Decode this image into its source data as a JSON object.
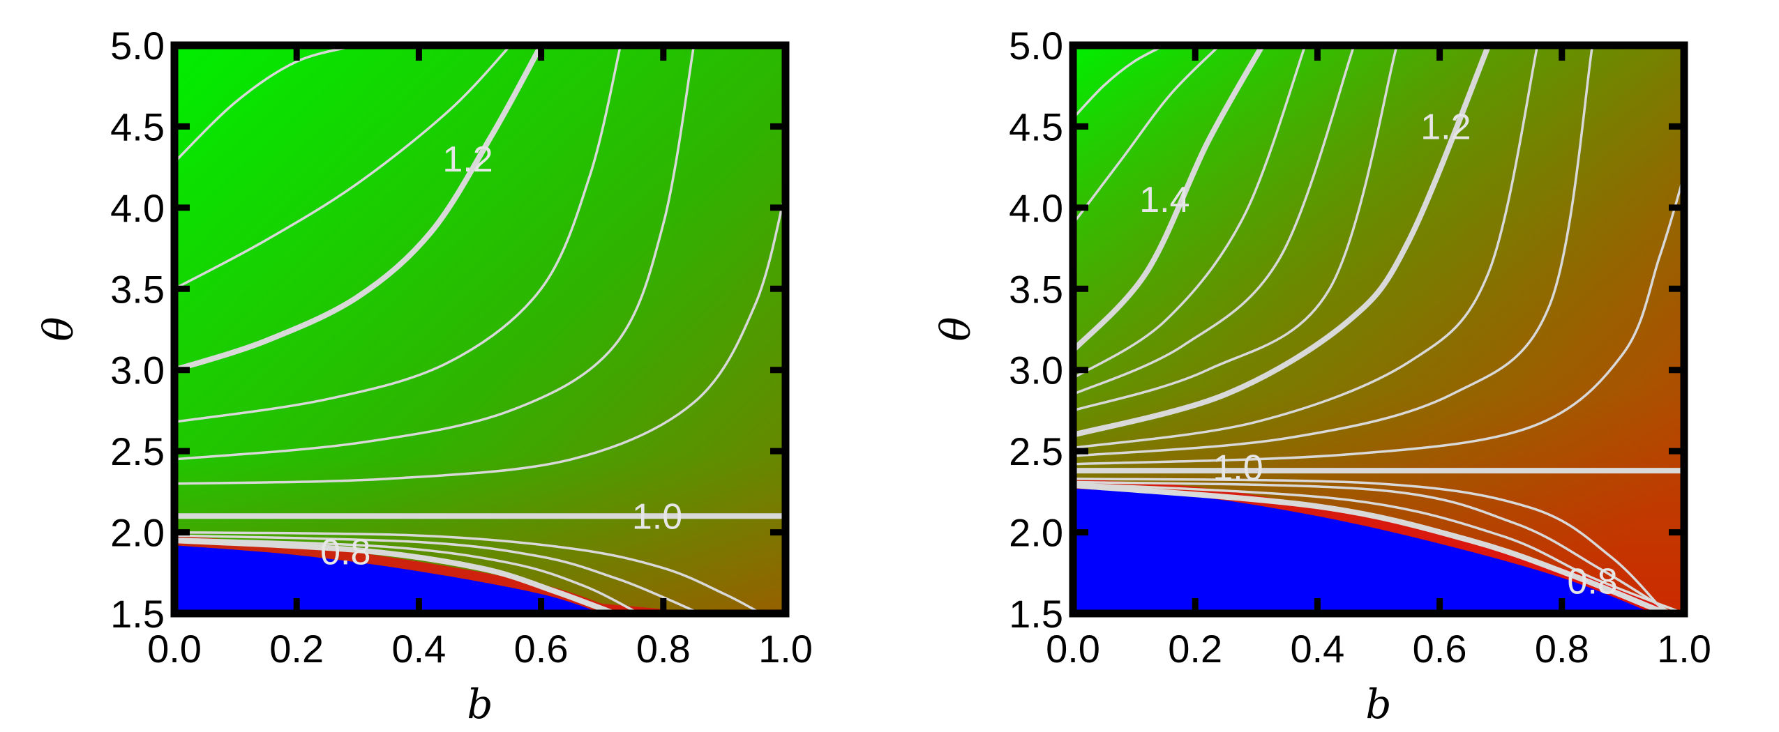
{
  "chart_data": [
    {
      "type": "heatmap",
      "title": "",
      "xlabel": "b",
      "ylabel": "θ",
      "xlim": [
        0.0,
        1.0
      ],
      "ylim": [
        1.5,
        5.0
      ],
      "x_ticks": [
        "0.0",
        "0.2",
        "0.4",
        "0.6",
        "0.8",
        "1.0"
      ],
      "y_ticks": [
        "1.5",
        "2.0",
        "2.5",
        "3.0",
        "3.5",
        "4.0",
        "4.5",
        "5.0"
      ],
      "grid": false,
      "legend": "none",
      "colors": {
        "high": "#00f000",
        "mid": "#7a7a00",
        "low_red": "#e01010",
        "region_below": "#0000ff",
        "contour": "#d9d9d9"
      },
      "blue_region_boundary": {
        "b": [
          0.0,
          0.2,
          0.4,
          0.6,
          0.7
        ],
        "theta": [
          1.92,
          1.86,
          1.76,
          1.62,
          1.5
        ]
      },
      "contour_labels": [
        {
          "text": "1.2",
          "b": 0.48,
          "theta": 4.3
        },
        {
          "text": "1.0",
          "b": 0.79,
          "theta": 2.1
        },
        {
          "text": "0.8",
          "b": 0.28,
          "theta": 1.88
        }
      ],
      "contours": [
        {
          "level": 1.4,
          "major": false,
          "b": [
            0.0,
            0.1,
            0.2,
            0.3
          ],
          "theta": [
            4.28,
            4.65,
            4.9,
            5.0
          ]
        },
        {
          "level": 1.3,
          "major": false,
          "b": [
            0.0,
            0.15,
            0.3,
            0.45,
            0.55
          ],
          "theta": [
            3.5,
            3.8,
            4.15,
            4.6,
            5.0
          ]
        },
        {
          "level": 1.2,
          "major": true,
          "b": [
            0.0,
            0.15,
            0.3,
            0.42,
            0.52,
            0.6
          ],
          "theta": [
            3.0,
            3.18,
            3.45,
            3.85,
            4.45,
            5.0
          ]
        },
        {
          "level": 1.15,
          "major": false,
          "b": [
            0.0,
            0.25,
            0.45,
            0.6,
            0.68,
            0.73
          ],
          "theta": [
            2.68,
            2.82,
            3.05,
            3.5,
            4.2,
            5.0
          ]
        },
        {
          "level": 1.1,
          "major": false,
          "b": [
            0.0,
            0.3,
            0.55,
            0.72,
            0.8,
            0.85
          ],
          "theta": [
            2.45,
            2.55,
            2.75,
            3.15,
            3.9,
            5.0
          ]
        },
        {
          "level": 1.05,
          "major": false,
          "b": [
            0.0,
            0.35,
            0.65,
            0.85,
            0.95,
            1.0
          ],
          "theta": [
            2.3,
            2.33,
            2.45,
            2.8,
            3.4,
            4.1
          ]
        },
        {
          "level": 1.0,
          "major": true,
          "b": [
            0.0,
            0.5,
            1.0
          ],
          "theta": [
            2.1,
            2.1,
            2.1
          ]
        },
        {
          "level": 0.95,
          "major": false,
          "b": [
            0.0,
            0.4,
            0.65,
            0.8,
            0.9,
            0.96
          ],
          "theta": [
            2.0,
            1.98,
            1.9,
            1.78,
            1.62,
            1.5
          ]
        },
        {
          "level": 0.9,
          "major": false,
          "b": [
            0.0,
            0.4,
            0.6,
            0.72,
            0.8,
            0.86
          ],
          "theta": [
            1.98,
            1.94,
            1.85,
            1.72,
            1.6,
            1.5
          ]
        },
        {
          "level": 0.85,
          "major": false,
          "b": [
            0.0,
            0.35,
            0.55,
            0.67,
            0.76
          ],
          "theta": [
            1.96,
            1.91,
            1.81,
            1.67,
            1.5
          ]
        },
        {
          "level": 0.8,
          "major": true,
          "b": [
            0.0,
            0.3,
            0.5,
            0.62,
            0.72
          ],
          "theta": [
            1.95,
            1.89,
            1.78,
            1.64,
            1.5
          ]
        }
      ]
    },
    {
      "type": "heatmap",
      "title": "",
      "xlabel": "b",
      "ylabel": "θ",
      "xlim": [
        0.0,
        1.0
      ],
      "ylim": [
        1.5,
        5.0
      ],
      "x_ticks": [
        "0.0",
        "0.2",
        "0.4",
        "0.6",
        "0.8",
        "1.0"
      ],
      "y_ticks": [
        "1.5",
        "2.0",
        "2.5",
        "3.0",
        "3.5",
        "4.0",
        "4.5",
        "5.0"
      ],
      "grid": false,
      "legend": "none",
      "colors": {
        "high": "#00f000",
        "mid": "#a06000",
        "low_red": "#e01010",
        "region_below": "#0000ff",
        "contour": "#d9d9d9"
      },
      "blue_region_boundary": {
        "b": [
          0.0,
          0.2,
          0.4,
          0.6,
          0.8,
          0.95
        ],
        "theta": [
          2.27,
          2.22,
          2.1,
          1.93,
          1.72,
          1.5
        ]
      },
      "contour_labels": [
        {
          "text": "1.4",
          "b": 0.15,
          "theta": 4.05
        },
        {
          "text": "1.2",
          "b": 0.61,
          "theta": 4.5
        },
        {
          "text": "1.0",
          "b": 0.27,
          "theta": 2.4
        },
        {
          "text": "0.8",
          "b": 0.85,
          "theta": 1.7
        }
      ],
      "contours": [
        {
          "level": 1.5,
          "major": false,
          "b": [
            0.0,
            0.05,
            0.1,
            0.15
          ],
          "theta": [
            4.55,
            4.75,
            4.9,
            5.0
          ]
        },
        {
          "level": 1.45,
          "major": false,
          "b": [
            0.0,
            0.08,
            0.16,
            0.24
          ],
          "theta": [
            3.9,
            4.3,
            4.7,
            5.0
          ]
        },
        {
          "level": 1.4,
          "major": true,
          "b": [
            0.0,
            0.12,
            0.22,
            0.31
          ],
          "theta": [
            3.12,
            3.6,
            4.4,
            5.0
          ]
        },
        {
          "level": 1.35,
          "major": false,
          "b": [
            0.0,
            0.15,
            0.28,
            0.38
          ],
          "theta": [
            2.95,
            3.3,
            3.95,
            5.0
          ]
        },
        {
          "level": 1.3,
          "major": false,
          "b": [
            0.0,
            0.18,
            0.34,
            0.46
          ],
          "theta": [
            2.85,
            3.15,
            3.7,
            5.0
          ]
        },
        {
          "level": 1.25,
          "major": false,
          "b": [
            0.0,
            0.22,
            0.42,
            0.53
          ],
          "theta": [
            2.75,
            3.0,
            3.5,
            5.0
          ]
        },
        {
          "level": 1.2,
          "major": true,
          "b": [
            0.0,
            0.25,
            0.45,
            0.55,
            0.68
          ],
          "theta": [
            2.6,
            2.85,
            3.3,
            3.8,
            5.0
          ]
        },
        {
          "level": 1.15,
          "major": false,
          "b": [
            0.0,
            0.3,
            0.55,
            0.68,
            0.76
          ],
          "theta": [
            2.52,
            2.68,
            3.05,
            3.6,
            5.0
          ]
        },
        {
          "level": 1.1,
          "major": false,
          "b": [
            0.0,
            0.35,
            0.62,
            0.78,
            0.85
          ],
          "theta": [
            2.47,
            2.58,
            2.85,
            3.4,
            5.0
          ]
        },
        {
          "level": 1.05,
          "major": false,
          "b": [
            0.0,
            0.45,
            0.75,
            0.9,
            0.96,
            1.0
          ],
          "theta": [
            2.42,
            2.48,
            2.65,
            3.1,
            3.7,
            4.2
          ]
        },
        {
          "level": 1.0,
          "major": true,
          "b": [
            0.0,
            0.5,
            1.0
          ],
          "theta": [
            2.38,
            2.38,
            2.38
          ]
        },
        {
          "level": 0.95,
          "major": false,
          "b": [
            0.0,
            0.5,
            0.75,
            0.88,
            0.97
          ],
          "theta": [
            2.33,
            2.3,
            2.15,
            1.85,
            1.5
          ]
        },
        {
          "level": 0.9,
          "major": false,
          "b": [
            0.0,
            0.5,
            0.72,
            0.86,
            0.98
          ],
          "theta": [
            2.31,
            2.26,
            2.06,
            1.78,
            1.5
          ]
        },
        {
          "level": 0.85,
          "major": false,
          "b": [
            0.0,
            0.45,
            0.7,
            0.85,
            1.0
          ],
          "theta": [
            2.3,
            2.2,
            1.98,
            1.72,
            1.5
          ]
        },
        {
          "level": 0.8,
          "major": true,
          "b": [
            0.0,
            0.4,
            0.65,
            0.82,
            0.97
          ],
          "theta": [
            2.29,
            2.16,
            1.95,
            1.73,
            1.5
          ]
        }
      ]
    }
  ]
}
